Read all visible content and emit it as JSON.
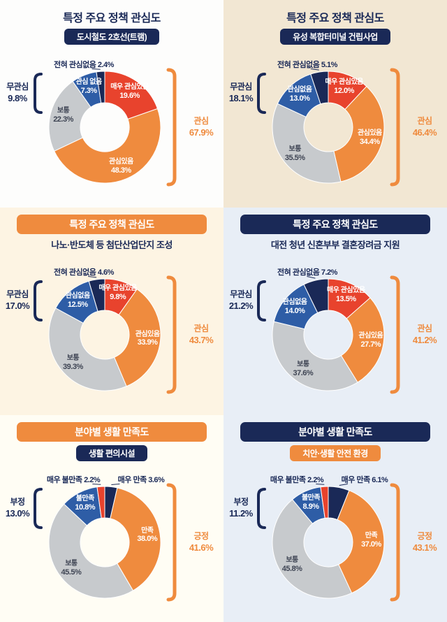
{
  "colors": {
    "navy": "#1a2957",
    "blue": "#2e5da6",
    "gray": "#c7cacd",
    "orange": "#ef8b3e",
    "red": "#e8432d",
    "gray_text": "#3f4554",
    "callout_text": "#1a2957"
  },
  "chart_data": [
    {
      "type": "pie",
      "title": "특정 주요 정책 관심도",
      "subtitle": "도시철도 2호선(트램)",
      "panel_bg": "#fdfdfc",
      "title_style": "plain",
      "subtitle_style": "navy-pill",
      "unit": "%",
      "segments": [
        {
          "label": "매우 관심있음",
          "value": 19.6,
          "color": "#e8432d"
        },
        {
          "label": "관심있음",
          "value": 48.3,
          "color": "#ef8b3e"
        },
        {
          "label": "보통",
          "value": 22.3,
          "color": "#c7cacd",
          "text_color": "#3f4554"
        },
        {
          "label": "관심 없음",
          "value": 7.3,
          "color": "#2e5da6"
        },
        {
          "label": "전혀 관심없음",
          "value": 2.4,
          "color": "#1a2957",
          "callout": "top"
        }
      ],
      "aggregates": {
        "right": {
          "label": "관심",
          "value": 67.9,
          "color": "#ef8b3e"
        },
        "left": {
          "label": "무관심",
          "value": 9.8,
          "color": "#1a2957"
        }
      }
    },
    {
      "type": "pie",
      "title": "특정 주요 정책 관심도",
      "subtitle": "유성 복합터미널 건립사업",
      "panel_bg": "#f2e7d3",
      "title_style": "plain",
      "subtitle_style": "navy-pill",
      "unit": "%",
      "segments": [
        {
          "label": "매우 관심있음",
          "value": 12.0,
          "color": "#e8432d"
        },
        {
          "label": "관심있음",
          "value": 34.4,
          "color": "#ef8b3e"
        },
        {
          "label": "보통",
          "value": 35.5,
          "color": "#c7cacd",
          "text_color": "#3f4554"
        },
        {
          "label": "관심없음",
          "value": 13.0,
          "color": "#2e5da6"
        },
        {
          "label": "전혀 관심없음",
          "value": 5.1,
          "color": "#1a2957",
          "callout": "top"
        }
      ],
      "aggregates": {
        "right": {
          "label": "관심",
          "value": 46.4,
          "color": "#ef8b3e"
        },
        "left": {
          "label": "무관심",
          "value": 18.1,
          "color": "#1a2957"
        }
      }
    },
    {
      "type": "pie",
      "title": "특정 주요 정책 관심도",
      "subtitle": "나노·반도체 등 첨단산업단지 조성",
      "panel_bg": "#fdf4e3",
      "title_style": "orange-bar",
      "subtitle_style": "plain",
      "unit": "%",
      "segments": [
        {
          "label": "매우 관심있음",
          "value": 9.8,
          "color": "#e8432d"
        },
        {
          "label": "관심있음",
          "value": 33.9,
          "color": "#ef8b3e"
        },
        {
          "label": "보통",
          "value": 39.3,
          "color": "#c7cacd",
          "text_color": "#3f4554"
        },
        {
          "label": "관심없음",
          "value": 12.5,
          "color": "#2e5da6"
        },
        {
          "label": "전혀 관심없음",
          "value": 4.6,
          "color": "#1a2957",
          "callout": "top"
        }
      ],
      "aggregates": {
        "right": {
          "label": "관심",
          "value": 43.7,
          "color": "#ef8b3e"
        },
        "left": {
          "label": "무관심",
          "value": 17.0,
          "color": "#1a2957"
        }
      }
    },
    {
      "type": "pie",
      "title": "특정 주요 정책 관심도",
      "subtitle": "대전 청년 신혼부부 결혼장려금 지원",
      "panel_bg": "#e8eef6",
      "title_style": "navy-bar",
      "subtitle_style": "plain",
      "unit": "%",
      "segments": [
        {
          "label": "매우 관심있음",
          "value": 13.5,
          "color": "#e8432d"
        },
        {
          "label": "관심있음",
          "value": 27.7,
          "color": "#ef8b3e"
        },
        {
          "label": "보통",
          "value": 37.6,
          "color": "#c7cacd",
          "text_color": "#3f4554"
        },
        {
          "label": "관심없음",
          "value": 14.0,
          "color": "#2e5da6"
        },
        {
          "label": "전혀 관심없음",
          "value": 7.2,
          "color": "#1a2957",
          "callout": "top"
        }
      ],
      "aggregates": {
        "right": {
          "label": "관심",
          "value": 41.2,
          "color": "#ef8b3e"
        },
        "left": {
          "label": "무관심",
          "value": 21.2,
          "color": "#1a2957"
        }
      }
    },
    {
      "type": "pie",
      "title": "분야별 생활 만족도",
      "subtitle": "생활 편의시설",
      "panel_bg": "#fffdf4",
      "title_style": "orange-bar",
      "subtitle_style": "navy-pill",
      "unit": "%",
      "segments": [
        {
          "label": "매우 만족",
          "value": 3.6,
          "color": "#1a2957",
          "callout": "right"
        },
        {
          "label": "만족",
          "value": 38.0,
          "color": "#ef8b3e"
        },
        {
          "label": "보통",
          "value": 45.5,
          "color": "#c7cacd",
          "text_color": "#3f4554"
        },
        {
          "label": "불만족",
          "value": 10.8,
          "color": "#2e5da6"
        },
        {
          "label": "매우 불만족",
          "value": 2.2,
          "color": "#e8432d",
          "callout": "left"
        }
      ],
      "aggregates": {
        "right": {
          "label": "긍정",
          "value": 41.6,
          "color": "#ef8b3e"
        },
        "left": {
          "label": "부정",
          "value": 13.0,
          "color": "#1a2957"
        }
      }
    },
    {
      "type": "pie",
      "title": "분야별 생활 만족도",
      "subtitle": "치안·생활 안전 환경",
      "panel_bg": "#e8eef6",
      "title_style": "navy-bar",
      "subtitle_style": "orange-pill",
      "unit": "%",
      "segments": [
        {
          "label": "매우 만족",
          "value": 6.1,
          "color": "#1a2957",
          "callout": "right"
        },
        {
          "label": "만족",
          "value": 37.0,
          "color": "#ef8b3e"
        },
        {
          "label": "보통",
          "value": 45.8,
          "color": "#c7cacd",
          "text_color": "#3f4554"
        },
        {
          "label": "불만족",
          "value": 8.9,
          "color": "#2e5da6"
        },
        {
          "label": "매우 불만족",
          "value": 2.2,
          "color": "#e8432d",
          "callout": "left"
        }
      ],
      "aggregates": {
        "right": {
          "label": "긍정",
          "value": 43.1,
          "color": "#ef8b3e"
        },
        "left": {
          "label": "부정",
          "value": 11.2,
          "color": "#1a2957"
        }
      }
    }
  ]
}
